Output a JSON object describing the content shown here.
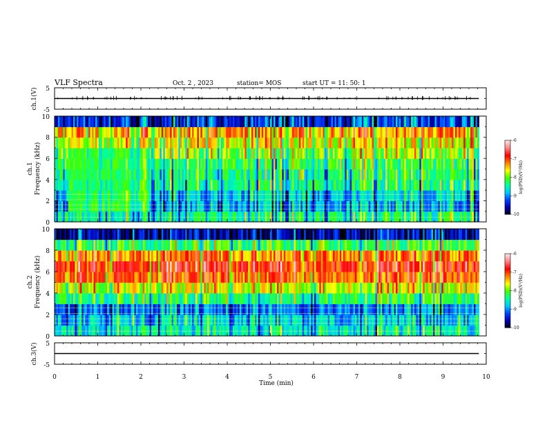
{
  "header": {
    "title": "VLF Spectra",
    "date": "Oct. 2 , 2023",
    "station": "station= MOS",
    "start": "start UT =  11: 50: 1"
  },
  "chart_data": {
    "type": "heatmap",
    "xlabel": "Time  (min)",
    "xlim": [
      0,
      10
    ],
    "xticks": [
      0,
      1,
      2,
      3,
      4,
      5,
      6,
      7,
      8,
      9,
      10
    ],
    "data_end_min": 9.83,
    "waveform_panels": [
      {
        "ylabel": "ch.1(V)",
        "ylim": [
          -5,
          5
        ],
        "yticks": [
          5,
          -5
        ],
        "level": 0,
        "spiky": true
      },
      {
        "ylabel": "ch.3(V)",
        "ylim": [
          -5,
          5
        ],
        "yticks": [
          5,
          -5
        ],
        "level": 0,
        "spiky": false
      }
    ],
    "spectrogram_panels": [
      {
        "ylabel_line1": "ch.1",
        "ylabel_line2": "Frequency (kHz)",
        "ylim": [
          0,
          10
        ],
        "yticks": [
          0,
          2,
          4,
          6,
          8,
          10
        ],
        "profile_khz": [
          0.5,
          1.5,
          2.5,
          3.5,
          4.5,
          5.5,
          6.5,
          7.5,
          8.5,
          9.5
        ],
        "profile_level": [
          -8.4,
          -8.9,
          -8.8,
          -8.4,
          -8.3,
          -8.2,
          -7.9,
          -7.6,
          -7.3,
          -9.3
        ],
        "greenish_interval_min": [
          0.3,
          2.2
        ]
      },
      {
        "ylabel_line1": "ch.2",
        "ylabel_line2": "Frequency (kHz)",
        "ylim": [
          0,
          10
        ],
        "yticks": [
          0,
          2,
          4,
          6,
          8,
          10
        ],
        "profile_khz": [
          0.5,
          1.5,
          2.5,
          3.5,
          4.5,
          5.5,
          6.5,
          7.5,
          8.5,
          9.5
        ],
        "profile_level": [
          -8.6,
          -8.8,
          -9.1,
          -8.3,
          -7.7,
          -7.1,
          -6.9,
          -7.2,
          -8.2,
          -9.6
        ],
        "greenish_interval_min": []
      }
    ],
    "colorbar": {
      "label": "log(PSD)(V²/Hz)",
      "range": [
        -10,
        -6
      ],
      "ticks": [
        "-6",
        "-7",
        "-8",
        "-9",
        "-10"
      ],
      "colors": [
        "#000000",
        "#0000b0",
        "#0040ff",
        "#00c8ff",
        "#00ffa0",
        "#40ff00",
        "#ffff00",
        "#ff8000",
        "#ff0000",
        "#ff8080",
        "#ffe0e0"
      ]
    }
  }
}
